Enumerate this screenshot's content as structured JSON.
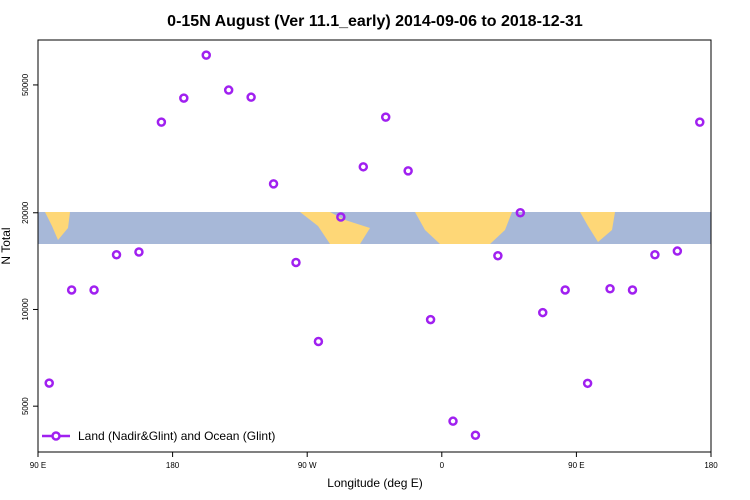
{
  "chart_data": {
    "type": "scatter",
    "title": "0-15N August (Ver 11.1_early)   2014-09-06 to 2018-12-31",
    "x_label": "Longitude (deg E)",
    "y_label": "N Total",
    "xlim": [
      90,
      540
    ],
    "xticks": [
      {
        "value": 90,
        "label": "90 E"
      },
      {
        "value": 180,
        "label": "180"
      },
      {
        "value": 270,
        "label": "90 W"
      },
      {
        "value": 360,
        "label": "0"
      },
      {
        "value": 450,
        "label": "90 E"
      },
      {
        "value": 540,
        "label": "180"
      }
    ],
    "ylim": [
      3600,
      69000
    ],
    "yticks": [
      5000,
      10000,
      20000,
      50000
    ],
    "yscale": "log",
    "legend": "bottom-left",
    "series": [
      {
        "name": "Land (Nadir&Glint) and Ocean (Glint)",
        "color": "#a020f0",
        "x": [
          97.5,
          112.5,
          127.5,
          142.5,
          157.5,
          172.5,
          187.5,
          202.5,
          217.5,
          232.5,
          247.5,
          262.5,
          277.5,
          292.5,
          307.5,
          322.5,
          337.5,
          352.5,
          367.5,
          382.5,
          397.5,
          412.5,
          427.5,
          442.5,
          457.5,
          472.5,
          487.5,
          502.5,
          517.5,
          532.5
        ],
        "values": [
          5900,
          11500,
          11500,
          14800,
          15100,
          38300,
          45500,
          61900,
          48200,
          45800,
          24600,
          14000,
          7950,
          19400,
          27800,
          39700,
          27000,
          9300,
          4490,
          4060,
          14700,
          20000,
          9780,
          11500,
          5890,
          11600,
          11500,
          14800,
          15200,
          38300
        ]
      }
    ]
  }
}
